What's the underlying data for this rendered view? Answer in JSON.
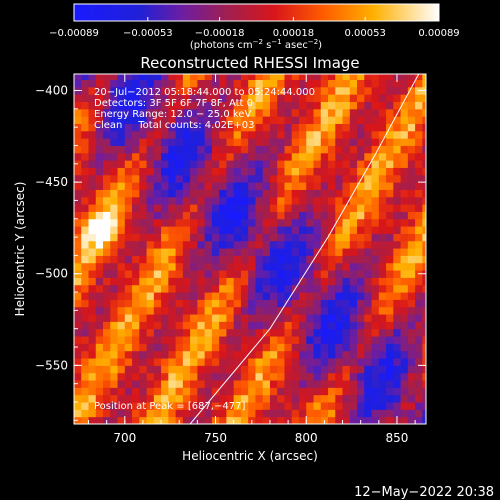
{
  "chart_data": {
    "type": "heatmap",
    "title": "Reconstructed RHESSI Image",
    "xlabel": "Heliocentric X (arcsec)",
    "ylabel": "Heliocentric Y (arcsec)",
    "xlim": [
      672,
      866
    ],
    "ylim": [
      -582,
      -391
    ],
    "x_ticks": [
      700,
      750,
      800,
      850
    ],
    "y_ticks": [
      -400,
      -450,
      -500,
      -550
    ],
    "x_tick_labels": [
      "700",
      "750",
      "800",
      "850"
    ],
    "y_tick_labels": [
      "−400",
      "−450",
      "−500",
      "−550"
    ],
    "colorbar": {
      "min": -0.00089,
      "max": 0.00089,
      "ticks": [
        -0.00089,
        -0.00053,
        -0.00018,
        0.00018,
        0.00053,
        0.00089
      ],
      "tick_labels": [
        "−0.00089",
        "−0.00053",
        "−0.00018",
        "0.00018",
        "0.00053",
        "0.00089"
      ],
      "unit_parts": [
        "(photons cm",
        "−2",
        " s",
        "−1",
        " asec",
        "−2",
        ")"
      ]
    },
    "annotations": [
      "20−Jul−2012 05:18:44.000 to 05:24:44.000",
      "Detectors: 3F 5F 6F 7F 8F, Att 0",
      "Energy Range: 12.0 − 25.0 keV",
      "Clean     Total counts: 4.02E+03"
    ],
    "peak_label": "Position at Peak = [687,−477]",
    "peak_position": [
      687,
      -477
    ],
    "limb_points": [
      [
        736,
        -582
      ],
      [
        780,
        -530
      ],
      [
        812,
        -480
      ],
      [
        838,
        -435
      ],
      [
        862,
        -391
      ]
    ],
    "pixel_size_arcsec": 4,
    "grid": false
  },
  "footer": {
    "timestamp": "12−May−2022 20:38"
  }
}
